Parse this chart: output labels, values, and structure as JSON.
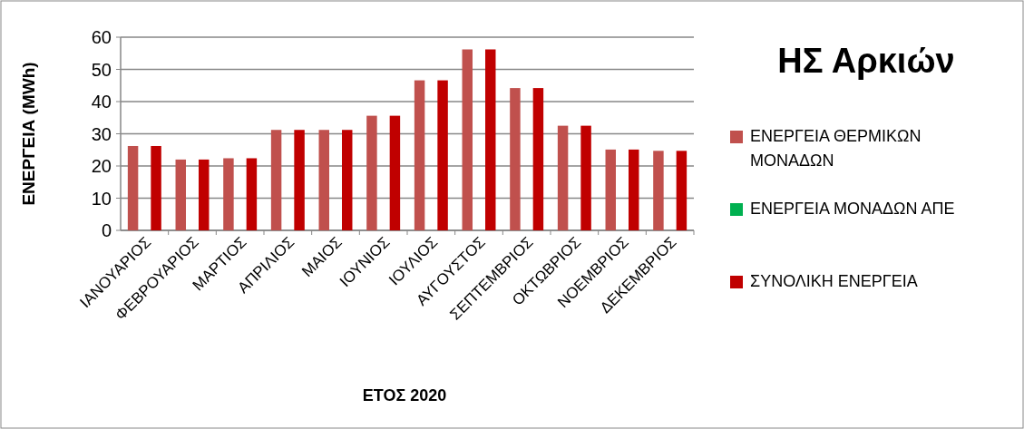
{
  "chart_data": {
    "type": "bar",
    "title": "ΗΣ Αρκιών",
    "xlabel": "ΕΤΟΣ 2020",
    "ylabel": "ΕΝΕΡΓΕΙΑ (MWh)",
    "categories": [
      "ΙΑΝΟΥΑΡΙΟΣ",
      "ΦΕΒΡΟΥΑΡΙΟΣ",
      "ΜΑΡΤΙΟΣ",
      "ΑΠΡΙΛΙΟΣ",
      "ΜΑΙΟΣ",
      "ΙΟΥΝΙΟΣ",
      "ΙΟΥΛΙΟΣ",
      "ΑΥΓΟΥΣΤΟΣ",
      "ΣΕΠΤΕΜΒΡΙΟΣ",
      "ΟΚΤΩΒΡΙΟΣ",
      "ΝΟΕΜΒΡΙΟΣ",
      "ΔΕΚΕΜΒΡΙΟΣ"
    ],
    "series": [
      {
        "name": "ΕΝΕΡΓΕΙΑ ΘΕΡΜΙΚΩΝ ΜΟΝΑΔΩΝ",
        "color": "#c0504d",
        "values": [
          26.2,
          22.0,
          22.4,
          31.2,
          31.2,
          35.6,
          46.6,
          56.2,
          44.2,
          32.5,
          25.1,
          24.7
        ]
      },
      {
        "name": "ΕΝΕΡΓΕΙΑ ΜΟΝΑΔΩΝ ΑΠΕ",
        "color": "#00b050",
        "values": [
          0,
          0,
          0,
          0,
          0,
          0,
          0,
          0,
          0,
          0,
          0,
          0
        ]
      },
      {
        "name": "ΣΥΝΟΛΙΚΗ ΕΝΕΡΓΕΙΑ",
        "color": "#c00000",
        "values": [
          26.2,
          22.0,
          22.4,
          31.2,
          31.2,
          35.6,
          46.6,
          56.2,
          44.2,
          32.5,
          25.1,
          24.7
        ]
      }
    ],
    "ylim": [
      0,
      60
    ],
    "yticks": [
      0,
      10,
      20,
      30,
      40,
      50,
      60
    ],
    "grid": "y",
    "legend": "right"
  }
}
